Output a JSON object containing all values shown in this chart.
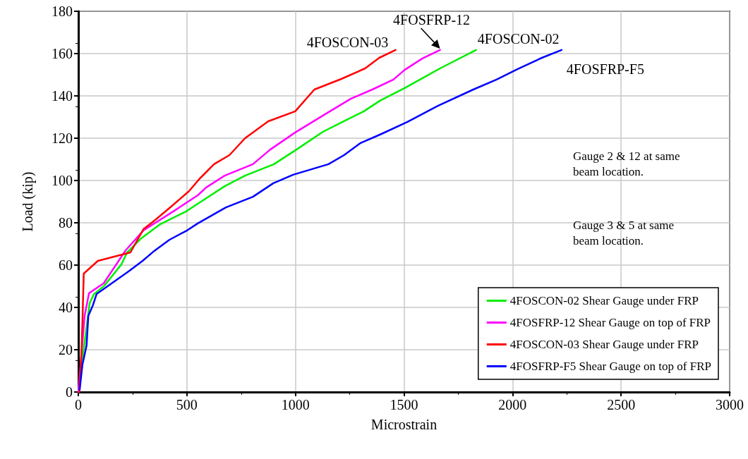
{
  "chart_data": {
    "type": "line",
    "xlabel": "Microstrain",
    "ylabel": "Load (kip)",
    "xlim": [
      0,
      3000
    ],
    "xticks": [
      0,
      500,
      1000,
      1500,
      2000,
      2500,
      3000
    ],
    "ylim": [
      0,
      180
    ],
    "yticks": [
      0,
      20,
      40,
      60,
      80,
      100,
      120,
      140,
      160,
      180
    ],
    "grid": true,
    "legend": "bottom right",
    "marker": "none",
    "line_style": "solid",
    "series": [
      {
        "name": "4FOSCON-02 Shear Gauge under FRP",
        "color": "#00ee00",
        "x": [
          0,
          52,
          72,
          120,
          198,
          225,
          290,
          377,
          495,
          550,
          674,
          768,
          901,
          1006,
          1126,
          1217,
          1315,
          1389,
          1503,
          1591,
          1666,
          1832
        ],
        "values": [
          0,
          42,
          46.3,
          50.3,
          60.3,
          66,
          72.7,
          79.3,
          85.3,
          89,
          97.3,
          102.3,
          107.7,
          114.7,
          123,
          127.7,
          132.7,
          137.7,
          143.7,
          148.7,
          153,
          161.7
        ]
      },
      {
        "name": "4FOSFRP-12 Shear Gauge on top of FRP",
        "color": "#ff00ff",
        "x": [
          0,
          29,
          49,
          117,
          218,
          300,
          436,
          550,
          589,
          674,
          804,
          885,
          999,
          1136,
          1256,
          1354,
          1451,
          1503,
          1585,
          1666
        ],
        "values": [
          0,
          36,
          46.7,
          51.4,
          67,
          76.4,
          85.3,
          93,
          96.7,
          102.3,
          107.7,
          114.7,
          122.7,
          131.3,
          138.7,
          143,
          147.7,
          152.3,
          157.7,
          161.7
        ]
      },
      {
        "name": "4FOSCON-03 Shear Gauge under FRP",
        "color": "#ff0000",
        "x": [
          5,
          15,
          20,
          25,
          90,
          240,
          300,
          350,
          420,
          510,
          560,
          625,
          696,
          768,
          875,
          999,
          1087,
          1211,
          1321,
          1386,
          1461
        ],
        "values": [
          0,
          20,
          37,
          56,
          62,
          66,
          77,
          81,
          87,
          95,
          101,
          107.7,
          112,
          120,
          128,
          132.7,
          143,
          148,
          153,
          158,
          161.7
        ]
      },
      {
        "name": "4FOSFRP-F5 Shear Gauge on top of FRP",
        "color": "#0000ff",
        "x": [
          6,
          19,
          38,
          46,
          67,
          84,
          231,
          296,
          345,
          420,
          501,
          550,
          680,
          804,
          898,
          989,
          1152,
          1224,
          1298,
          1396,
          1516,
          1656,
          1819,
          1926,
          2024,
          2135,
          2226
        ],
        "values": [
          1,
          13,
          22,
          36,
          41,
          46.3,
          57,
          62,
          66.3,
          72,
          76.4,
          79.7,
          87.3,
          92.3,
          98.7,
          102.7,
          107.7,
          112,
          117.6,
          122,
          127.7,
          135.3,
          143,
          147.7,
          152.7,
          158,
          161.7
        ]
      }
    ],
    "annotations": [
      {
        "text": "4FOSCON-03",
        "x": 1461,
        "y": 161.7
      },
      {
        "text": "4FOSFRP-12",
        "x": 1666,
        "y": 161.7
      },
      {
        "text": "4FOSCON-02",
        "x": 1832,
        "y": 161.7
      },
      {
        "text": "4FOSFRP-F5",
        "x": 2226,
        "y": 161.7
      },
      "Gauge 2 & 12 at same beam location.",
      "Gauge 3 & 5 at same beam location."
    ]
  }
}
